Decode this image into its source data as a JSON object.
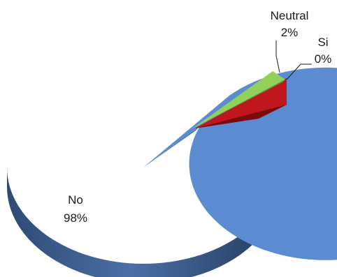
{
  "chart_data": {
    "type": "pie",
    "style": "3d-exploded",
    "slices": [
      {
        "name": "No",
        "value": 98,
        "label": "98%",
        "color": "#5B8BD0"
      },
      {
        "name": "Neutral",
        "value": 2,
        "label": "2%",
        "color": "#92D05A"
      },
      {
        "name": "Si",
        "value": 0,
        "label": "0%",
        "color": "#C0161D"
      }
    ]
  }
}
